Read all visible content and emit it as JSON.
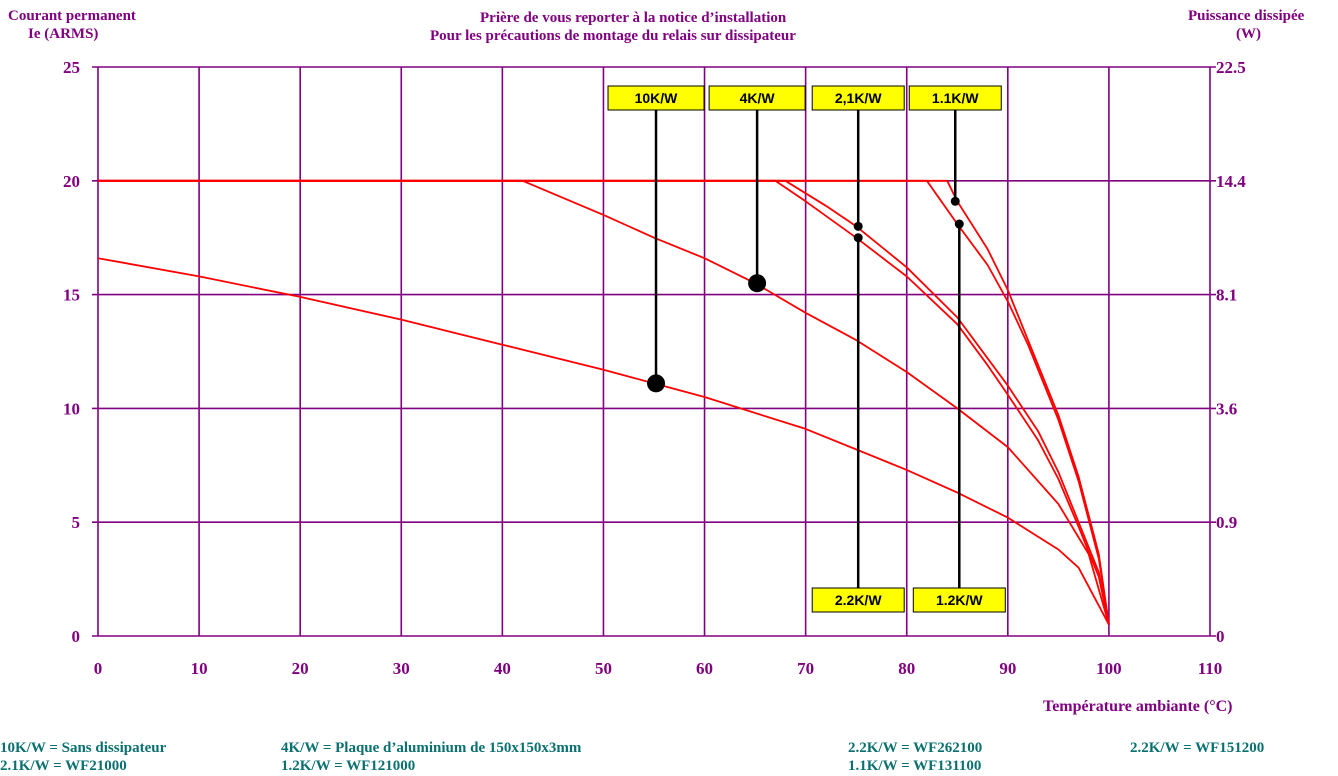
{
  "header": {
    "left_axis_title_1": "Courant permanent",
    "left_axis_title_2": "Ie (ARMS)",
    "center_note_1": "Prière de vous reporter à la notice d’installation",
    "center_note_2": "Pour les précautions de montage du relais sur dissipateur",
    "right_axis_title_1": "Puissance dissipée",
    "right_axis_title_2": "(W)"
  },
  "x_axis_title": "Température ambiante (°C)",
  "footer": {
    "row1": [
      "10K/W = Sans dissipateur",
      "4K/W = Plaque d’aluminium de 150x150x3mm",
      "2.2K/W = WF262100",
      "2.2K/W = WF151200"
    ],
    "row2": [
      "2.1K/W = WF21000",
      "1.2K/W = WF121000",
      "1.1K/W = WF131100"
    ]
  },
  "colors": {
    "grid": "#800080",
    "curve": "#ff0000",
    "tag_fill": "#ffff00",
    "tick": "#800080",
    "footer": "#0a7070"
  },
  "chart_data": {
    "type": "line",
    "xlabel": "Température ambiante (°C)",
    "ylabel": "Courant permanent Ie (ARMS)",
    "y2label": "Puissance dissipée (W)",
    "xlim": [
      0,
      110
    ],
    "ylim": [
      0,
      25
    ],
    "grid": true,
    "x_ticks": [
      "0",
      "10",
      "20",
      "30",
      "40",
      "50",
      "60",
      "70",
      "80",
      "90",
      "100",
      "110"
    ],
    "y_ticks": [
      "0",
      "5",
      "10",
      "15",
      "20",
      "25"
    ],
    "y_ticks_values": [
      0,
      5,
      10,
      15,
      20,
      25
    ],
    "y2_ticks": [
      "0",
      "0.9",
      "3.6",
      "8.1",
      "14.4",
      "22.5"
    ],
    "series": [
      {
        "x": [
          0,
          10,
          20,
          30,
          40,
          50,
          55,
          60,
          70,
          80,
          85,
          90,
          95,
          97,
          100
        ],
        "y": [
          16.6,
          15.8,
          14.9,
          13.9,
          12.8,
          11.7,
          11.1,
          10.5,
          9.1,
          7.3,
          6.3,
          5.2,
          3.8,
          3.0,
          0.5
        ]
      },
      {
        "x": [
          0,
          42,
          50,
          55,
          60,
          65,
          70,
          75,
          80,
          85,
          90,
          95,
          98,
          100
        ],
        "y": [
          20,
          20,
          18.5,
          17.5,
          16.6,
          15.5,
          14.2,
          13,
          11.6,
          10,
          8.3,
          5.8,
          3.6,
          0.5
        ]
      },
      {
        "x": [
          0,
          68,
          72,
          75,
          80,
          85,
          88,
          90,
          93,
          95,
          97,
          99,
          100
        ],
        "y": [
          20,
          20,
          18.9,
          18,
          16.2,
          14,
          12.2,
          11,
          9,
          7.2,
          5,
          2.8,
          0.5
        ]
      },
      {
        "x": [
          0,
          67,
          70,
          75,
          80,
          85,
          88,
          90,
          93,
          95,
          97,
          99,
          100
        ],
        "y": [
          20,
          20,
          19.1,
          17.5,
          15.8,
          13.7,
          11.9,
          10.6,
          8.6,
          6.9,
          4.8,
          2.6,
          0.5
        ]
      },
      {
        "x": [
          0,
          84,
          85,
          88,
          90,
          92,
          95,
          97,
          99,
          100
        ],
        "y": [
          20,
          20,
          19.1,
          17,
          15.2,
          13,
          9.7,
          7,
          3.6,
          0.5
        ]
      },
      {
        "x": [
          0,
          82,
          85,
          88,
          90,
          92,
          95,
          97,
          99,
          100
        ],
        "y": [
          20,
          20,
          18.1,
          16.3,
          14.7,
          12.8,
          9.5,
          6.8,
          3.4,
          0.5
        ]
      }
    ],
    "markers": [
      {
        "label": "10K/W",
        "x": 55.2,
        "y": 11.1,
        "position": "top",
        "size": "large"
      },
      {
        "label": "4K/W",
        "x": 65.2,
        "y": 15.5,
        "position": "top",
        "size": "large"
      },
      {
        "label": "2,1K/W",
        "x": 75.2,
        "y": 18.0,
        "position": "top",
        "size": "small"
      },
      {
        "label": "2.2K/W",
        "x": 75.2,
        "y": 17.5,
        "position": "bottom",
        "size": "small"
      },
      {
        "label": "1.1K/W",
        "x": 84.8,
        "y": 19.1,
        "position": "top",
        "size": "small"
      },
      {
        "label": "1.2K/W",
        "x": 85.2,
        "y": 18.1,
        "position": "bottom",
        "size": "small"
      }
    ]
  }
}
